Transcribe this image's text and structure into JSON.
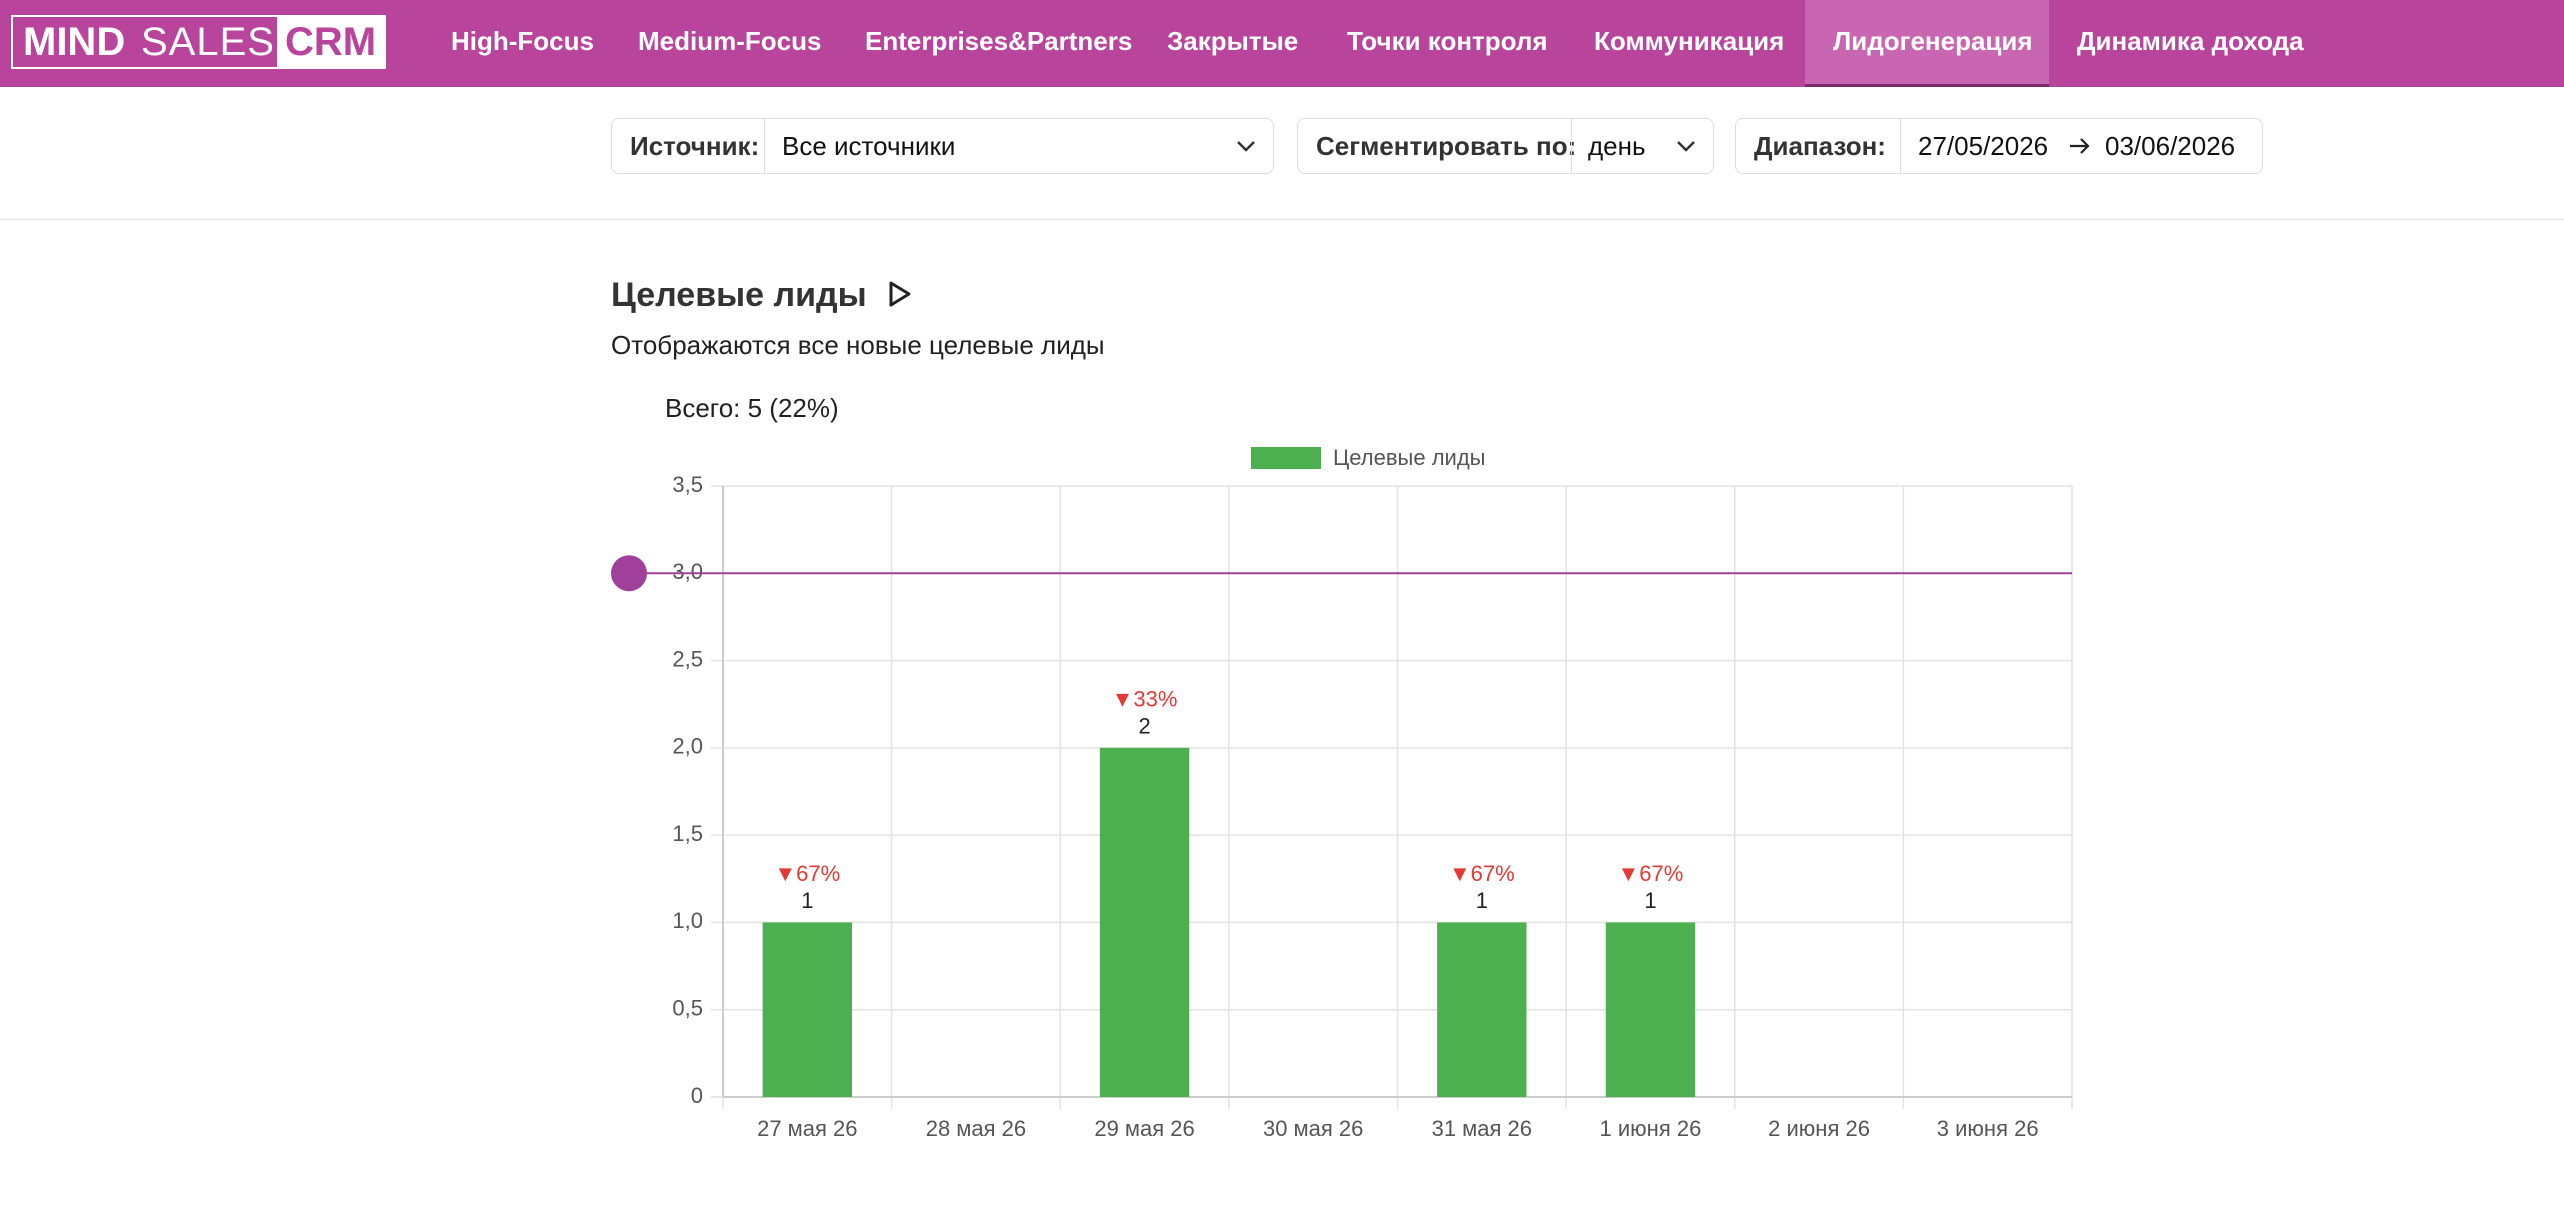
{
  "nav": {
    "logo": [
      "MIND",
      "SALES",
      "CRM"
    ],
    "items": [
      "High-Focus",
      "Medium-Focus",
      "Enterprises&Partners",
      "Закрытые",
      "Точки контроля",
      "Коммуникация",
      "Лидогенерация",
      "Динамика дохода"
    ],
    "active": 6
  },
  "filters": {
    "source_label": "Источник:",
    "source_value": "Все источники",
    "segment_label": "Сегментировать по:",
    "segment_value": "день",
    "range_label": "Диапазон:",
    "range_from": "27/05/2026",
    "range_to": "03/06/2026"
  },
  "chart_data": {
    "type": "bar",
    "title": "Целевые лиды",
    "subtitle": "Отображаются все новые целевые лиды",
    "total": "Всего: 5 (22%)",
    "categories": [
      "27 мая 26",
      "28 мая 26",
      "29 мая 26",
      "30 мая 26",
      "31 мая 26",
      "1 июня 26",
      "2 июня 26",
      "3 июня 26"
    ],
    "series": [
      {
        "name": "Целевые лиды",
        "color": "#4caf50",
        "values": [
          1,
          0,
          2,
          0,
          1,
          1,
          0,
          0
        ],
        "value_labels": [
          "1",
          null,
          "2",
          null,
          "1",
          "1",
          null,
          null
        ],
        "change_labels": [
          "▼67%",
          null,
          "▼33%",
          null,
          "▼67%",
          "▼67%",
          null,
          null
        ]
      }
    ],
    "ylim": [
      0,
      3.5
    ],
    "yticks": [
      0,
      {
        "value": 0.5,
        "label": "0,5"
      },
      {
        "value": 1,
        "label": "1,0"
      },
      {
        "value": 1.5,
        "label": "1,5"
      },
      {
        "value": 2,
        "label": "2,0"
      },
      {
        "value": 2.5,
        "label": "2,5"
      },
      {
        "value": 3,
        "label": "3,0"
      },
      {
        "value": 3.5,
        "label": "3,5"
      }
    ],
    "target_line": 3,
    "target_color": "#a0409a",
    "change_color": "#e53935",
    "grid": true
  }
}
